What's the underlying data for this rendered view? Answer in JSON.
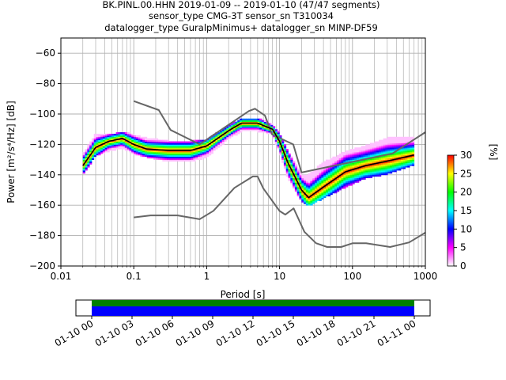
{
  "title_lines": [
    "BK.PINL.00.HHN   2019-01-09 -- 2019-01-10  (47/47 segments)",
    "sensor_type CMG-3T sensor_sn T310034",
    "datalogger_type GuralpMinimus+ datalogger_sn MINP-DF59"
  ],
  "chart_data": [
    {
      "type": "heatmap",
      "xlabel": "Period [s]",
      "ylabel": "Power [m²/s⁴/Hz] [dB]",
      "xscale": "log",
      "xlim": [
        0.01,
        1000
      ],
      "ylim": [
        -200,
        -50
      ],
      "x_ticks": [
        0.01,
        0.1,
        1,
        10,
        100,
        1000
      ],
      "x_tick_labels": [
        "0.01",
        "0.1",
        "1",
        "10",
        "100",
        "1000"
      ],
      "y_ticks": [
        -200,
        -180,
        -160,
        -140,
        -120,
        -100,
        -80,
        -60
      ],
      "y_tick_labels": [
        "−200",
        "−180",
        "−160",
        "−140",
        "−120",
        "−100",
        "−80",
        "−60"
      ],
      "grid": true,
      "colorbar": {
        "label": "[%]",
        "range": [
          0,
          30
        ],
        "ticks": [
          0,
          5,
          10,
          15,
          20,
          25,
          30
        ],
        "colors": [
          "#ffffff",
          "#ff00ff",
          "#0000ff",
          "#00ffff",
          "#00ff00",
          "#ffff00",
          "#ff0000"
        ]
      },
      "series": [
        {
          "role": "new_high_noise_model",
          "color": "#666666",
          "x": [
            0.1,
            0.22,
            0.32,
            0.8,
            3.8,
            4.6,
            6.3,
            7.9,
            15.4,
            20,
            354.8,
            1000
          ],
          "y": [
            -91.5,
            -97.4,
            -110.5,
            -120,
            -98,
            -96.5,
            -101,
            -113.5,
            -120,
            -138.5,
            -126,
            -112
          ]
        },
        {
          "role": "new_low_noise_model",
          "color": "#666666",
          "x": [
            0.1,
            0.17,
            0.4,
            0.8,
            1.24,
            2.4,
            4.3,
            5,
            6,
            10,
            12,
            15.6,
            21.9,
            31.6,
            45,
            70,
            101,
            154,
            328,
            600,
            1000
          ],
          "y": [
            -168,
            -166.7,
            -166.7,
            -169.2,
            -163.7,
            -148.6,
            -141.1,
            -141.1,
            -149,
            -163.8,
            -166.2,
            -162.1,
            -177.5,
            -185,
            -187.5,
            -187.5,
            -185,
            -185,
            -187.5,
            -184.5,
            -178
          ]
        },
        {
          "role": "median_psd",
          "color": "#000000",
          "x": [
            0.02,
            0.03,
            0.045,
            0.07,
            0.1,
            0.15,
            0.3,
            0.6,
            1,
            2,
            3,
            5,
            8,
            10,
            13,
            20,
            25,
            40,
            80,
            150,
            300,
            700
          ],
          "y": [
            -134,
            -122,
            -118,
            -116,
            -120,
            -123,
            -124,
            -124,
            -121,
            -111,
            -106,
            -106,
            -110,
            -118,
            -132,
            -150,
            -155,
            -148,
            -138,
            -134,
            -131,
            -127
          ]
        }
      ],
      "density_band": {
        "x": [
          0.02,
          0.03,
          0.045,
          0.07,
          0.1,
          0.15,
          0.3,
          0.6,
          1,
          2,
          3,
          5,
          8,
          10,
          13,
          20,
          25,
          40,
          80,
          150,
          300,
          700
        ],
        "upper": [
          -127,
          -113,
          -114,
          -112,
          -114,
          -116,
          -118,
          -118,
          -117,
          -108,
          -103,
          -103,
          -107,
          -113,
          -125,
          -140,
          -140,
          -132,
          -125,
          -121,
          -116,
          -115
        ],
        "lower": [
          -140,
          -127,
          -124,
          -122,
          -126,
          -128,
          -131,
          -131,
          -128,
          -116,
          -111,
          -111,
          -113,
          -125,
          -142,
          -157,
          -160,
          -155,
          -148,
          -142,
          -139,
          -133
        ]
      }
    },
    {
      "type": "timeline",
      "x_tick_labels": [
        "01-10 00",
        "01-10 03",
        "01-10 06",
        "01-10 09",
        "01-10 12",
        "01-10 15",
        "01-10 18",
        "01-10 21",
        "01-11 00"
      ],
      "bars": [
        {
          "role": "data_available",
          "color": "#008000",
          "start": "01-10 00",
          "end": "01-11 00"
        },
        {
          "role": "segments_used",
          "color": "#0000ff",
          "start": "01-10 00",
          "end": "01-11 00"
        }
      ]
    }
  ]
}
